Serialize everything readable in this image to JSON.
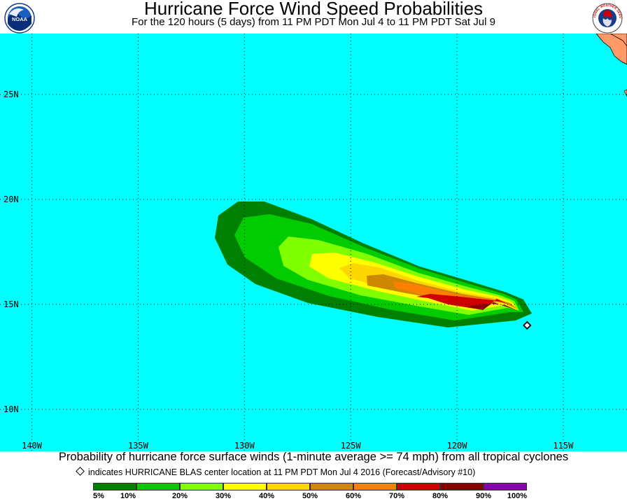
{
  "header": {
    "title": "Hurricane Force Wind Speed Probabilities",
    "subtitle": "For the 120 hours (5 days) from 11 PM PDT Mon Jul 4 to 11 PM PDT Sat Jul 9",
    "left_logo": {
      "name": "noaa-logo",
      "text": "NOAA"
    },
    "right_logo": {
      "name": "national-weather-service-logo",
      "text": "NATIONAL WEATHER SERVICE"
    }
  },
  "map": {
    "ocean_color": "#00ffff",
    "land_color": "#ff9966",
    "lon_range": [
      -141.5,
      -112.0
    ],
    "lat_range": [
      8.0,
      27.9
    ],
    "lon_ticks": [
      {
        "value": -140,
        "label": "140W"
      },
      {
        "value": -135,
        "label": "135W"
      },
      {
        "value": -130,
        "label": "130W"
      },
      {
        "value": -125,
        "label": "125W"
      },
      {
        "value": -120,
        "label": "120W"
      },
      {
        "value": -115,
        "label": "115W"
      }
    ],
    "lat_ticks": [
      {
        "value": 25,
        "label": "25N"
      },
      {
        "value": 20,
        "label": "20N"
      },
      {
        "value": 15,
        "label": "15N"
      },
      {
        "value": 10,
        "label": "10N"
      }
    ],
    "storm_center": {
      "lon": -116.7,
      "lat": 14.0
    },
    "probability_zones": [
      {
        "level": "5%",
        "color": "#008000"
      },
      {
        "level": "10%",
        "color": "#00cc00"
      },
      {
        "level": "20%",
        "color": "#80ff00"
      },
      {
        "level": "30%",
        "color": "#ffff00"
      },
      {
        "level": "40%",
        "color": "#ffd700"
      },
      {
        "level": "50%",
        "color": "#cc8800"
      },
      {
        "level": "60%",
        "color": "#ff8000"
      },
      {
        "level": "70%",
        "color": "#d00000"
      },
      {
        "level": "80%",
        "color": "#880000"
      }
    ]
  },
  "caption": "Probability of hurricane force surface winds (1-minute average >= 74 mph) from all tropical cyclones",
  "note": "indicates HURRICANE BLAS center location at 11 PM PDT Mon Jul 4 2016 (Forecast/Advisory #10)",
  "legend": {
    "colors": [
      "#008000",
      "#00cc00",
      "#80ff00",
      "#ffff00",
      "#ffd700",
      "#cc8800",
      "#ff8000",
      "#d00000",
      "#880000",
      "#8800aa"
    ],
    "labels": [
      "5%",
      "10%",
      "20%",
      "30%",
      "40%",
      "50%",
      "60%",
      "70%",
      "80%",
      "90%",
      "100%"
    ]
  }
}
